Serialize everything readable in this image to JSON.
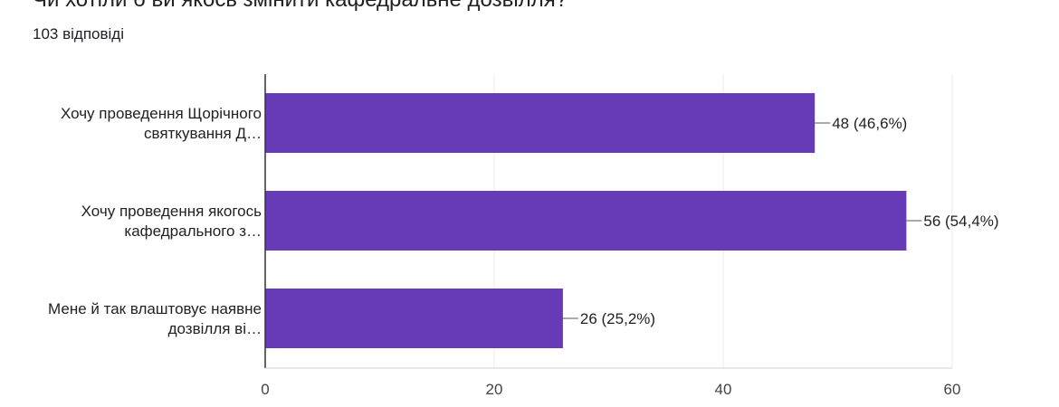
{
  "header": {
    "title": "Чи хотіли б ви якось змінити кафедральне дозвілля?",
    "responses": "103 відповіді"
  },
  "colors": {
    "bar": "#673ab7",
    "grid": "#ebebeb",
    "axis": "#333333",
    "text": "#222222"
  },
  "chart_data": {
    "type": "bar",
    "orientation": "horizontal",
    "categories": [
      [
        "Хочу проведення Щорічного",
        "святкування Д…"
      ],
      [
        "Хочу проведення якогось",
        "кафедрального з…"
      ],
      [
        "Мене й так влаштовує наявне",
        "дозвілля ві…"
      ]
    ],
    "values": [
      48,
      56,
      26
    ],
    "data_labels": [
      "48 (46,6%)",
      "56 (54,4%)",
      "26 (25,2%)"
    ],
    "xlim": [
      0,
      60
    ],
    "xticks": [
      0,
      20,
      40,
      60
    ],
    "grid": true
  }
}
